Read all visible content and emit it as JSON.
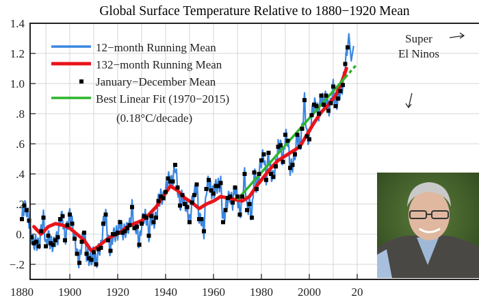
{
  "chart_data": {
    "type": "line",
    "title": "Global Surface Temperature Relative to 1880−1920 Mean",
    "xlabel": "",
    "ylabel": "",
    "xlim": [
      1883,
      2017
    ],
    "ylim": [
      -0.3,
      1.4
    ],
    "grid": true,
    "x_ticks": [
      1880,
      1900,
      1920,
      1940,
      1960,
      1980,
      2000,
      2020
    ],
    "x_tick_labels": [
      "1880",
      "1900",
      "1920",
      "1940",
      "1960",
      "1980",
      "2000",
      "20"
    ],
    "y_ticks": [
      -0.2,
      0.0,
      0.2,
      0.4,
      0.6,
      0.8,
      1.0,
      1.2,
      1.4
    ],
    "y_tick_labels": [
      "−.2",
      "0.",
      ".2",
      ".4",
      ".6",
      ".8",
      "1.0",
      "1.2",
      "1.4"
    ],
    "legend_placement": "top-left",
    "legend": [
      {
        "label": "12−month Running Mean",
        "color": "#3a86e0",
        "kind": "line"
      },
      {
        "label": "132−month Running Mean",
        "color": "#e8141a",
        "kind": "thick-line"
      },
      {
        "label": "January−December Mean",
        "color": "#000000",
        "kind": "marker"
      },
      {
        "label": "Best Linear Fit (1970−2015)",
        "color": "#2db52d",
        "kind": "line"
      }
    ],
    "legend_note": "(0.18°C/decade)",
    "annotations": [
      {
        "text_lines": [
          "Super",
          "El Ninos"
        ],
        "points_to": [
          1998,
          2016
        ]
      }
    ],
    "series": [
      {
        "name": "January−December Mean",
        "x": [
          1880,
          1881,
          1882,
          1883,
          1884,
          1885,
          1886,
          1887,
          1888,
          1889,
          1890,
          1891,
          1892,
          1893,
          1894,
          1895,
          1896,
          1897,
          1898,
          1899,
          1900,
          1901,
          1902,
          1903,
          1904,
          1905,
          1906,
          1907,
          1908,
          1909,
          1910,
          1911,
          1912,
          1913,
          1914,
          1915,
          1916,
          1917,
          1918,
          1919,
          1920,
          1921,
          1922,
          1923,
          1924,
          1925,
          1926,
          1927,
          1928,
          1929,
          1930,
          1931,
          1932,
          1933,
          1934,
          1935,
          1936,
          1937,
          1938,
          1939,
          1940,
          1941,
          1942,
          1943,
          1944,
          1945,
          1946,
          1947,
          1948,
          1949,
          1950,
          1951,
          1952,
          1953,
          1954,
          1955,
          1956,
          1957,
          1958,
          1959,
          1960,
          1961,
          1962,
          1963,
          1964,
          1965,
          1966,
          1967,
          1968,
          1969,
          1970,
          1971,
          1972,
          1973,
          1974,
          1975,
          1976,
          1977,
          1978,
          1979,
          1980,
          1981,
          1982,
          1983,
          1984,
          1985,
          1986,
          1987,
          1988,
          1989,
          1990,
          1991,
          1992,
          1993,
          1994,
          1995,
          1996,
          1997,
          1998,
          1999,
          2000,
          2001,
          2002,
          2003,
          2004,
          2005,
          2006,
          2007,
          2008,
          2009,
          2010,
          2011,
          2012,
          2013,
          2014,
          2015,
          2016
        ],
        "values": [
          0.1,
          0.19,
          0.16,
          0.09,
          -0.02,
          -0.06,
          -0.05,
          -0.08,
          0.02,
          0.11,
          -0.08,
          -0.01,
          -0.06,
          -0.07,
          -0.04,
          -0.02,
          0.1,
          0.12,
          -0.04,
          0.06,
          0.13,
          0.07,
          -0.03,
          -0.13,
          -0.19,
          -0.05,
          0.01,
          -0.13,
          -0.16,
          -0.17,
          -0.12,
          -0.2,
          -0.1,
          -0.09,
          0.07,
          0.13,
          -0.04,
          -0.11,
          0.0,
          0.0,
          0.01,
          0.08,
          0.01,
          0.02,
          0.04,
          0.06,
          0.18,
          0.04,
          0.05,
          -0.07,
          0.07,
          0.12,
          0.11,
          -0.01,
          0.12,
          0.08,
          0.11,
          0.22,
          0.25,
          0.24,
          0.28,
          0.37,
          0.35,
          0.35,
          0.46,
          0.31,
          0.19,
          0.26,
          0.2,
          0.18,
          0.08,
          0.21,
          0.26,
          0.33,
          0.1,
          0.1,
          0.02,
          0.3,
          0.36,
          0.29,
          0.27,
          0.32,
          0.32,
          0.34,
          0.08,
          0.16,
          0.24,
          0.25,
          0.21,
          0.31,
          0.25,
          0.13,
          0.25,
          0.4,
          0.16,
          0.2,
          0.11,
          0.41,
          0.3,
          0.4,
          0.49,
          0.53,
          0.36,
          0.54,
          0.4,
          0.38,
          0.45,
          0.58,
          0.59,
          0.48,
          0.66,
          0.62,
          0.44,
          0.46,
          0.53,
          0.66,
          0.58,
          0.7,
          0.89,
          0.65,
          0.63,
          0.79,
          0.86,
          0.85,
          0.8,
          0.92,
          0.86,
          0.92,
          0.82,
          0.87,
          0.98,
          0.85,
          0.9,
          0.95,
          0.99,
          1.13,
          1.24
        ]
      },
      {
        "name": "132−month Running Mean",
        "x": [
          1885,
          1888,
          1891,
          1894,
          1897,
          1900,
          1903,
          1906,
          1909,
          1912,
          1915,
          1918,
          1921,
          1924,
          1927,
          1930,
          1933,
          1936,
          1939,
          1942,
          1945,
          1948,
          1951,
          1954,
          1957,
          1960,
          1963,
          1966,
          1969,
          1972,
          1975,
          1978,
          1981,
          1984,
          1987,
          1990,
          1993,
          1996,
          1999,
          2002,
          2005,
          2008,
          2011,
          2014,
          2015.5
        ],
        "values": [
          0.05,
          0.0,
          0.05,
          0.07,
          0.06,
          0.04,
          0.0,
          -0.04,
          -0.11,
          -0.08,
          -0.04,
          -0.01,
          0.01,
          0.05,
          0.07,
          0.09,
          0.13,
          0.18,
          0.25,
          0.32,
          0.29,
          0.24,
          0.21,
          0.17,
          0.2,
          0.22,
          0.25,
          0.24,
          0.23,
          0.22,
          0.25,
          0.32,
          0.38,
          0.44,
          0.49,
          0.52,
          0.55,
          0.58,
          0.66,
          0.74,
          0.81,
          0.86,
          0.92,
          1.03,
          1.1
        ]
      },
      {
        "name": "12−month Running Mean",
        "derived_from": "January−December Mean",
        "note": "sub-annual oscillation around annual means"
      },
      {
        "name": "Best Linear Fit (1970−2015)",
        "x": [
          1970,
          2015,
          2020
        ],
        "values": [
          0.23,
          1.04,
          1.13
        ],
        "dashed_after": 2015
      }
    ]
  },
  "photo": {
    "description": "portrait-photo"
  }
}
